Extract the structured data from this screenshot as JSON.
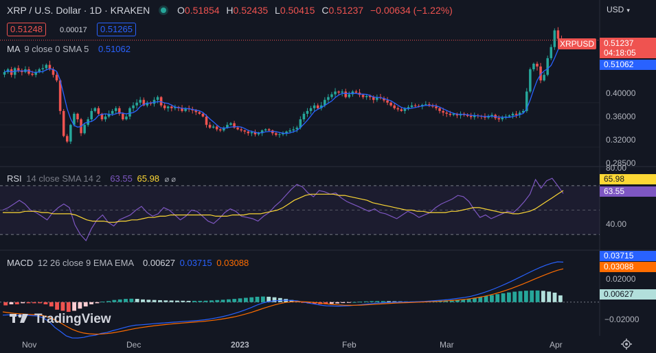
{
  "header": {
    "title": "XRP / U.S. Dollar · 1D · KRAKEN",
    "open_label": "O",
    "open": "0.51854",
    "high_label": "H",
    "high": "0.52435",
    "low_label": "L",
    "low": "0.50415",
    "close_label": "C",
    "close": "0.51237",
    "change": "−0.00634 (−1.22%)",
    "currency": "USD"
  },
  "quote": {
    "bid": "0.51248",
    "spread": "0.00017",
    "ask": "0.51265"
  },
  "ma_legend": {
    "label": "MA",
    "params": "9 close 0 SMA 5",
    "value": "0.51062"
  },
  "rsi_legend": {
    "label": "RSI",
    "params": "14 close SMA 14 2",
    "rsi": "63.55",
    "sma": "65.98",
    "extra": "⌀ ⌀"
  },
  "macd_legend": {
    "label": "MACD",
    "params": "12 26 close 9 EMA EMA",
    "hist": "0.00627",
    "macd": "0.03715",
    "signal": "0.03088"
  },
  "price_axis": {
    "labels": [
      "0.40000",
      "0.36000",
      "0.32000",
      "0.28500"
    ]
  },
  "price_tags": {
    "symbol": "XRPUSD",
    "last": "0.51237",
    "countdown": "04:18:05",
    "ma": "0.51062"
  },
  "rsi_axis": {
    "labels": [
      "80.00",
      "40.00"
    ],
    "sma_tag": "65.98",
    "rsi_tag": "63.55"
  },
  "macd_axis": {
    "labels": [
      "0.02000",
      "−0.02000"
    ],
    "macd_tag": "0.03715",
    "signal_tag": "0.03088",
    "hist_tag": "0.00627"
  },
  "time_axis": {
    "labels": [
      "Nov",
      "Dec",
      "2023",
      "Feb",
      "Mar",
      "Apr"
    ]
  },
  "brand": "TradingView",
  "colors": {
    "up": "#26a69a",
    "down": "#ef5350",
    "ma": "#2962ff",
    "rsi": "#7e57c2",
    "rsi_sma": "#fdd835",
    "macd": "#2962ff",
    "signal": "#ff6d00",
    "background": "#131722"
  },
  "chart_data": [
    {
      "type": "candlestick",
      "title": "XRP / U.S. Dollar · 1D · KRAKEN",
      "x_labels": [
        "Nov",
        "Dec",
        "2023",
        "Feb",
        "Mar",
        "Apr"
      ],
      "ylim": [
        0.285,
        0.56
      ],
      "closes": [
        0.455,
        0.46,
        0.45,
        0.462,
        0.458,
        0.455,
        0.46,
        0.452,
        0.45,
        0.455,
        0.46,
        0.462,
        0.468,
        0.46,
        0.45,
        0.44,
        0.385,
        0.34,
        0.33,
        0.36,
        0.38,
        0.37,
        0.345,
        0.36,
        0.37,
        0.385,
        0.39,
        0.38,
        0.37,
        0.375,
        0.38,
        0.385,
        0.39,
        0.38,
        0.37,
        0.375,
        0.39,
        0.395,
        0.4,
        0.405,
        0.395,
        0.4,
        0.398,
        0.405,
        0.41,
        0.395,
        0.39,
        0.393,
        0.39,
        0.392,
        0.39,
        0.385,
        0.39,
        0.388,
        0.386,
        0.383,
        0.38,
        0.375,
        0.36,
        0.355,
        0.357,
        0.352,
        0.35,
        0.355,
        0.36,
        0.363,
        0.355,
        0.352,
        0.35,
        0.348,
        0.345,
        0.347,
        0.343,
        0.345,
        0.35,
        0.352,
        0.35,
        0.345,
        0.342,
        0.343,
        0.345,
        0.348,
        0.35,
        0.352,
        0.355,
        0.37,
        0.38,
        0.385,
        0.39,
        0.395,
        0.39,
        0.395,
        0.405,
        0.41,
        0.415,
        0.42,
        0.418,
        0.42,
        0.41,
        0.415,
        0.42,
        0.418,
        0.414,
        0.41,
        0.412,
        0.41,
        0.405,
        0.41,
        0.408,
        0.404,
        0.4,
        0.395,
        0.39,
        0.388,
        0.385,
        0.39,
        0.392,
        0.395,
        0.394,
        0.393,
        0.396,
        0.397,
        0.395,
        0.393,
        0.39,
        0.385,
        0.382,
        0.38,
        0.378,
        0.38,
        0.377,
        0.38,
        0.378,
        0.376,
        0.374,
        0.377,
        0.376,
        0.375,
        0.373,
        0.376,
        0.378,
        0.372,
        0.37,
        0.373,
        0.375,
        0.377,
        0.38,
        0.378,
        0.382,
        0.385,
        0.42,
        0.46,
        0.47,
        0.465,
        0.44,
        0.45,
        0.48,
        0.5,
        0.53,
        0.515,
        0.51237
      ],
      "ma": {
        "label": "MA 9 close 0 SMA 5",
        "last": 0.51062
      }
    },
    {
      "type": "line",
      "title": "RSI 14 close SMA 14 2",
      "ylim": [
        20,
        80
      ],
      "series": [
        {
          "name": "RSI",
          "last": 63.55,
          "values": [
            50,
            52,
            55,
            58,
            55,
            50,
            48,
            45,
            42,
            48,
            52,
            55,
            52,
            38,
            30,
            25,
            35,
            42,
            46,
            40,
            37,
            42,
            44,
            46,
            50,
            53,
            48,
            45,
            47,
            52,
            50,
            46,
            42,
            45,
            50,
            49,
            45,
            41,
            39,
            43,
            48,
            51,
            49,
            45,
            44,
            43,
            41,
            45,
            48,
            53,
            57,
            62,
            67,
            71,
            69,
            64,
            61,
            66,
            65,
            63,
            64,
            60,
            57,
            55,
            53,
            51,
            49,
            51,
            48,
            47,
            45,
            43,
            46,
            49,
            47,
            44,
            46,
            48,
            52,
            55,
            57,
            59,
            62,
            61,
            57,
            50,
            44,
            46,
            43,
            45,
            47,
            49,
            48,
            52,
            57,
            63,
            75,
            68,
            74,
            76,
            70,
            63.55
          ]
        },
        {
          "name": "SMA",
          "last": 65.98,
          "values": [
            48,
            48,
            48,
            48,
            49,
            49,
            49,
            48,
            48,
            47,
            47,
            47,
            47,
            46,
            44,
            42,
            41,
            41,
            41,
            40,
            40,
            41,
            41,
            42,
            42,
            43,
            44,
            44,
            45,
            45,
            46,
            46,
            46,
            46,
            46,
            46,
            46,
            46,
            45,
            45,
            45,
            46,
            46,
            46,
            47,
            47,
            47,
            48,
            49,
            50,
            52,
            55,
            58,
            60,
            62,
            63,
            63,
            63,
            63,
            63,
            62,
            62,
            61,
            60,
            59,
            58,
            56,
            55,
            54,
            53,
            52,
            51,
            50,
            50,
            49,
            49,
            48,
            48,
            48,
            48,
            49,
            49,
            50,
            51,
            52,
            52,
            51,
            50,
            49,
            48,
            48,
            47,
            47,
            48,
            49,
            51,
            54,
            57,
            60,
            63,
            65.98
          ]
        }
      ],
      "levels": [
        70,
        50,
        30
      ]
    },
    {
      "type": "bar",
      "title": "MACD 12 26 close 9 EMA EMA",
      "ylim": [
        -0.03,
        0.045
      ],
      "series": [
        {
          "name": "Histogram",
          "last": 0.00627,
          "values": [
            -0.003,
            -0.002,
            -0.002,
            -0.001,
            -0.001,
            -0.001,
            -0.001,
            -0.002,
            -0.004,
            -0.007,
            -0.008,
            -0.009,
            -0.008,
            -0.006,
            -0.004,
            -0.002,
            -0.001,
            0.0005,
            0.001,
            0.002,
            0.0025,
            0.003,
            0.0032,
            0.003,
            0.0025,
            0.0022,
            0.002,
            0.0018,
            0.0016,
            0.0015,
            0.0014,
            0.0013,
            0.0012,
            0.0012,
            0.0012,
            0.0013,
            0.0016,
            0.0019,
            0.0022,
            0.0026,
            0.003,
            0.0035,
            0.004,
            0.0045,
            0.005,
            0.0052,
            0.005,
            0.0045,
            0.0038,
            0.003,
            0.002,
            0.001,
            -0.0005,
            -0.0012,
            -0.0015,
            -0.0018,
            -0.0018,
            -0.0015,
            -0.0012,
            -0.0008,
            -0.0004,
            0.0001,
            0.0004,
            0.0007,
            0.0009,
            0.001,
            0.001,
            0.0009,
            0.0008,
            0.0007,
            0.0006,
            0.0006,
            0.0007,
            0.0008,
            0.001,
            0.0012,
            0.0014,
            0.0016,
            0.0019,
            0.0022,
            0.0025,
            0.003,
            0.0038,
            0.0047,
            0.0056,
            0.0065,
            0.0074,
            0.0082,
            0.009,
            0.0097,
            0.0102,
            0.0106,
            0.0108,
            0.0108,
            0.0105,
            0.0098,
            0.0088,
            0.00627
          ]
        },
        {
          "name": "MACD",
          "last": 0.03715
        },
        {
          "name": "Signal",
          "last": 0.03088
        }
      ]
    }
  ]
}
